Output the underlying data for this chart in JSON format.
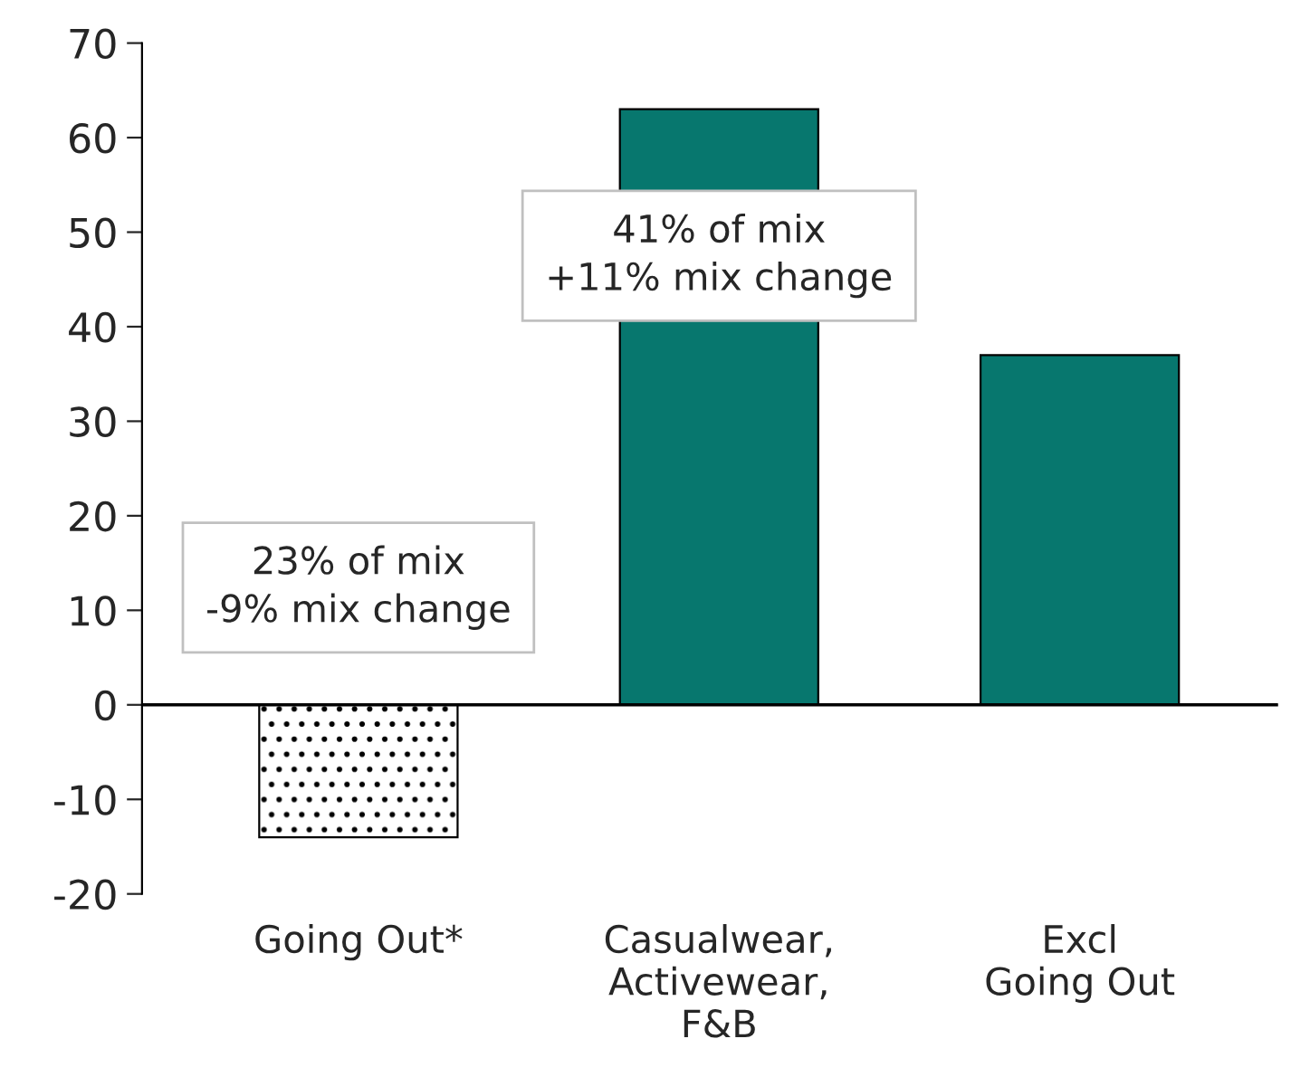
{
  "chart_data": {
    "type": "bar",
    "categories": [
      "Going Out*",
      "Casualwear,\nActivewear,\nF&B",
      "Excl\nGoing Out"
    ],
    "values": [
      -14,
      63,
      37
    ],
    "colors": [
      "#ffffff",
      "#07776e",
      "#07776e"
    ],
    "ylim": [
      -20,
      70
    ],
    "yticks": [
      -20,
      -10,
      0,
      10,
      20,
      30,
      40,
      50,
      60,
      70
    ],
    "ref_lines": [
      {
        "axis": "y",
        "value": 0,
        "color": "#000000"
      }
    ],
    "annotations": [
      "23% of mix\n-9% mix change",
      "41% of mix\n+11% mix change"
    ],
    "grid": false,
    "legend": false
  }
}
